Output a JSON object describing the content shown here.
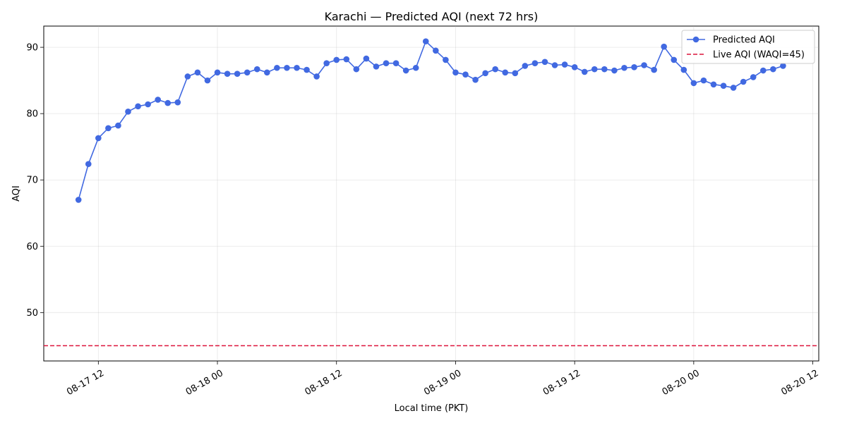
{
  "chart_data": {
    "type": "line",
    "title": "Karachi — Predicted AQI (next 72 hrs)",
    "xlabel": "Local time (PKT)",
    "ylabel": "AQI",
    "x_unit": "hours since 08-17 00:00 PKT",
    "x_ticks": [
      {
        "x": 12,
        "label": "08-17 12"
      },
      {
        "x": 24,
        "label": "08-18 00"
      },
      {
        "x": 36,
        "label": "08-18 12"
      },
      {
        "x": 48,
        "label": "08-19 00"
      },
      {
        "x": 60,
        "label": "08-19 12"
      },
      {
        "x": 72,
        "label": "08-20 00"
      },
      {
        "x": 84,
        "label": "08-20 12"
      }
    ],
    "y_ticks": [
      50,
      60,
      70,
      80,
      90
    ],
    "xlim": [
      6.5,
      84.6
    ],
    "ylim": [
      42.7,
      93.2
    ],
    "grid": true,
    "legend_position": "top-right",
    "series": [
      {
        "name": "Predicted AQI",
        "color": "#4169e1",
        "marker": "circle",
        "x_start": 10,
        "x_step": 1,
        "values": [
          67.0,
          72.4,
          76.3,
          77.8,
          78.2,
          80.3,
          81.1,
          81.4,
          82.1,
          81.6,
          81.7,
          85.6,
          86.2,
          85.0,
          86.2,
          86.0,
          86.0,
          86.2,
          86.7,
          86.2,
          86.9,
          86.9,
          86.9,
          86.6,
          85.6,
          87.6,
          88.1,
          88.2,
          86.7,
          88.3,
          87.1,
          87.6,
          87.6,
          86.5,
          86.9,
          90.9,
          89.5,
          88.1,
          86.2,
          85.9,
          85.1,
          86.1,
          86.7,
          86.2,
          86.1,
          87.2,
          87.6,
          87.8,
          87.3,
          87.4,
          87.0,
          86.3,
          86.7,
          86.7,
          86.5,
          86.9,
          87.0,
          87.3,
          86.6,
          90.1,
          88.1,
          86.6,
          84.6,
          85.0,
          84.4,
          84.2,
          83.9,
          84.8,
          85.5,
          86.5,
          86.7,
          87.2
        ]
      }
    ],
    "reference_lines": [
      {
        "name": "Live AQI (WAQI=45)",
        "y": 45,
        "color": "#dc143c",
        "style": "dashed"
      }
    ]
  }
}
